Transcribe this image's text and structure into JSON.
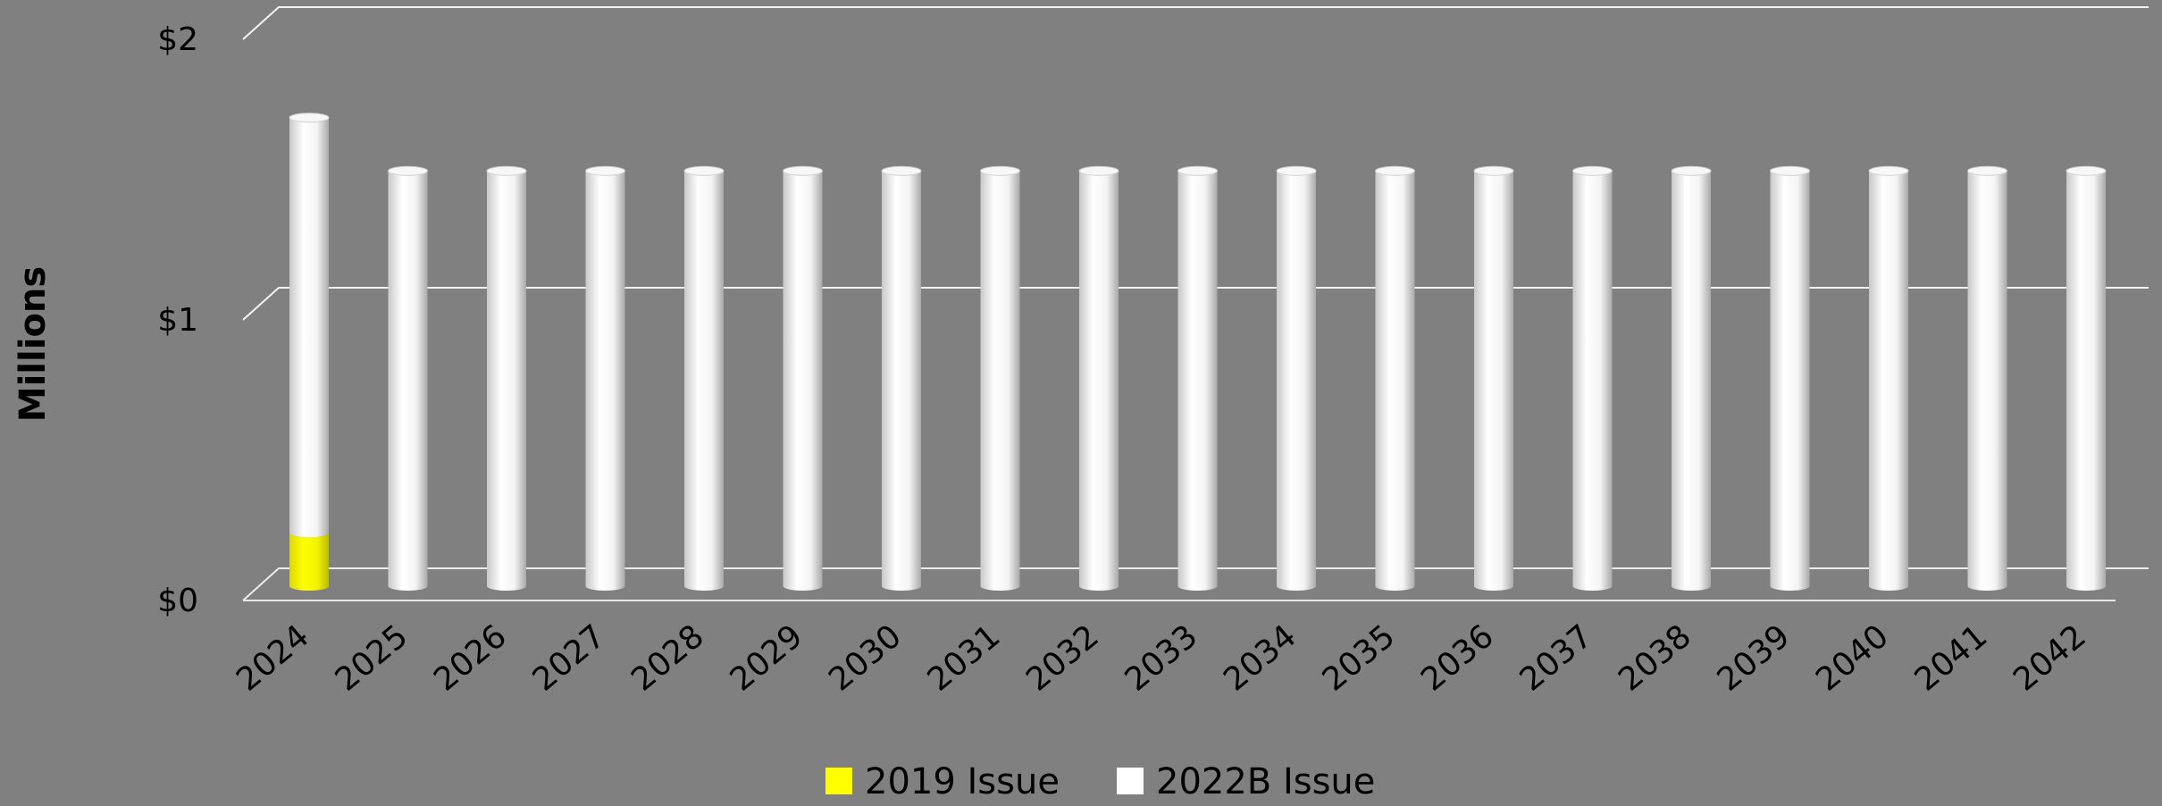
{
  "chart_data": {
    "type": "bar",
    "stacked": true,
    "style": "3d-cylinder",
    "categories": [
      "2024",
      "2025",
      "2026",
      "2027",
      "2028",
      "2029",
      "2030",
      "2031",
      "2032",
      "2033",
      "2034",
      "2035",
      "2036",
      "2037",
      "2038",
      "2039",
      "2040",
      "2041",
      "2042"
    ],
    "series": [
      {
        "name": "2019 Issue",
        "color": "#FFFF00",
        "values": [
          0.19,
          0,
          0,
          0,
          0,
          0,
          0,
          0,
          0,
          0,
          0,
          0,
          0,
          0,
          0,
          0,
          0,
          0,
          0
        ]
      },
      {
        "name": "2022B Issue",
        "color": "#FFFFFF",
        "values": [
          1.48,
          1.48,
          1.48,
          1.48,
          1.48,
          1.48,
          1.48,
          1.48,
          1.48,
          1.48,
          1.48,
          1.48,
          1.48,
          1.48,
          1.48,
          1.48,
          1.48,
          1.48,
          1.48
        ]
      }
    ],
    "ylabel": "Millions",
    "ylim": [
      0,
      2
    ],
    "yticks": [
      {
        "value": 0,
        "label": "$0"
      },
      {
        "value": 1,
        "label": "$1"
      },
      {
        "value": 2,
        "label": "$2"
      }
    ],
    "grid": true,
    "legend_position": "bottom-center"
  }
}
